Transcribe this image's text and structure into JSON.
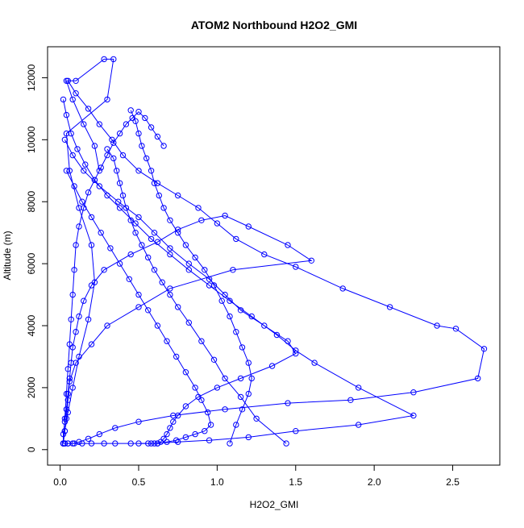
{
  "chart_data": {
    "type": "line",
    "title": "ATOM2 Northbound H2O2_GMI",
    "xlabel": "H2O2_GMI",
    "ylabel": "Altitude (m)",
    "xlim": [
      -0.08,
      2.8
    ],
    "ylim": [
      -500,
      13000
    ],
    "xticks": [
      0.0,
      0.5,
      1.0,
      1.5,
      2.0,
      2.5
    ],
    "xtick_labels": [
      "0.0",
      "0.5",
      "1.0",
      "1.5",
      "2.0",
      "2.5"
    ],
    "yticks": [
      0,
      2000,
      4000,
      6000,
      8000,
      10000,
      12000
    ],
    "ytick_labels": [
      "0",
      "2000",
      "4000",
      "6000",
      "8000",
      "10000",
      "12000"
    ],
    "grid": false,
    "legend": "none",
    "series": [
      {
        "color": "#0000ff",
        "marker": "open-circle",
        "x": [
          0.02,
          0.02,
          0.03,
          0.04,
          0.05,
          0.06,
          0.07,
          0.08,
          0.1,
          0.12,
          0.15,
          0.2,
          0.28,
          0.45,
          0.62,
          0.75,
          0.9,
          1.05,
          1.2,
          1.45,
          1.6,
          1.1,
          0.7,
          0.5,
          0.3,
          0.2,
          0.1,
          0.06,
          0.05,
          0.04,
          0.03,
          0.02,
          0.03,
          0.05,
          0.08,
          0.12,
          0.18,
          0.22,
          0.2,
          0.12,
          0.06,
          0.04,
          0.3,
          0.34,
          0.28,
          0.1,
          0.04,
          0.08,
          0.15,
          0.22,
          0.25
        ],
        "y": [
          200,
          500,
          900,
          1300,
          1800,
          2300,
          2800,
          3300,
          3800,
          4300,
          4800,
          5300,
          5800,
          6300,
          6700,
          7100,
          7400,
          7550,
          7200,
          6600,
          6100,
          5800,
          5200,
          4600,
          4000,
          3400,
          2800,
          2200,
          1600,
          1000,
          600,
          200,
          600,
          1200,
          2000,
          3000,
          4200,
          5400,
          6600,
          7800,
          9000,
          10200,
          11300,
          12600,
          12600,
          11900,
          11900,
          11300,
          10500,
          9800,
          9000
        ]
      },
      {
        "color": "#0000ff",
        "marker": "open-circle",
        "x": [
          0.05,
          0.1,
          0.18,
          0.25,
          0.33,
          0.4,
          0.5,
          0.62,
          0.75,
          0.88,
          1.0,
          1.12,
          1.3,
          1.5,
          1.8,
          2.1,
          2.4,
          2.52,
          2.7,
          2.66,
          2.25,
          1.85,
          1.45,
          1.05,
          0.72,
          0.5,
          0.35,
          0.25,
          0.18,
          0.12,
          0.08,
          0.05,
          0.03,
          0.02
        ],
        "y": [
          11900,
          11500,
          11000,
          10500,
          10000,
          9500,
          9000,
          8600,
          8200,
          7800,
          7300,
          6800,
          6300,
          5900,
          5200,
          4600,
          4000,
          3900,
          3250,
          2300,
          1850,
          1600,
          1500,
          1300,
          1100,
          900,
          700,
          500,
          350,
          250,
          200,
          200,
          200,
          200
        ]
      },
      {
        "color": "#0000ff",
        "marker": "open-circle",
        "x": [
          0.02,
          0.04,
          0.07,
          0.11,
          0.16,
          0.22,
          0.3,
          0.38,
          0.48,
          0.58,
          0.7,
          0.82,
          0.95,
          1.08,
          1.22,
          1.38,
          1.5,
          1.62,
          1.9,
          2.25,
          1.9,
          1.5,
          1.2,
          0.95,
          0.75,
          0.58,
          0.45,
          0.35,
          0.28,
          0.2,
          0.14,
          0.09,
          0.05,
          0.03
        ],
        "y": [
          11300,
          10800,
          10200,
          9700,
          9200,
          8700,
          8200,
          7800,
          7300,
          6800,
          6300,
          5800,
          5300,
          4800,
          4300,
          3700,
          3200,
          2800,
          2000,
          1100,
          800,
          600,
          400,
          300,
          250,
          200,
          200,
          200,
          200,
          200,
          200,
          200,
          200,
          200
        ]
      },
      {
        "color": "#0000ff",
        "marker": "open-circle",
        "x": [
          0.03,
          0.08,
          0.15,
          0.25,
          0.37,
          0.5,
          0.6,
          0.7,
          0.82,
          0.95,
          1.05,
          1.15,
          1.3,
          1.45,
          1.5,
          1.35,
          1.15,
          1.0,
          0.88,
          0.8,
          0.75,
          0.72,
          0.7,
          0.68,
          0.66,
          0.64,
          0.62,
          0.6
        ],
        "y": [
          10000,
          9500,
          9000,
          8500,
          8000,
          7500,
          7000,
          6500,
          6000,
          5500,
          5000,
          4500,
          4000,
          3500,
          3100,
          2700,
          2300,
          2000,
          1700,
          1400,
          1100,
          900,
          700,
          500,
          350,
          250,
          200,
          200
        ]
      },
      {
        "color": "#0000ff",
        "marker": "open-circle",
        "x": [
          0.45,
          0.48,
          0.5,
          0.52,
          0.55,
          0.58,
          0.6,
          0.63,
          0.66,
          0.7,
          0.75,
          0.8,
          0.86,
          0.92,
          0.98,
          1.03,
          1.08,
          1.12,
          1.16,
          1.2,
          1.22,
          1.2,
          1.16,
          1.12,
          1.08
        ],
        "y": [
          10950,
          10600,
          10200,
          9800,
          9400,
          9000,
          8600,
          8200,
          7800,
          7400,
          7000,
          6600,
          6200,
          5800,
          5300,
          4800,
          4300,
          3800,
          3300,
          2800,
          2300,
          1800,
          1300,
          800,
          200
        ]
      },
      {
        "color": "#0000ff",
        "marker": "open-circle",
        "x": [
          0.04,
          0.09,
          0.14,
          0.2,
          0.26,
          0.32,
          0.38,
          0.44,
          0.5,
          0.56,
          0.62,
          0.68,
          0.74,
          0.8,
          0.86,
          0.9,
          0.94,
          0.96,
          0.92,
          0.86,
          0.8,
          0.74,
          0.68,
          0.62,
          0.56,
          0.5
        ],
        "y": [
          9000,
          8500,
          8000,
          7500,
          7000,
          6500,
          6000,
          5500,
          5000,
          4500,
          4000,
          3500,
          3000,
          2500,
          2000,
          1600,
          1200,
          800,
          600,
          500,
          400,
          300,
          250,
          200,
          200,
          200
        ]
      },
      {
        "color": "#0000ff",
        "marker": "open-circle",
        "x": [
          0.3,
          0.34,
          0.36,
          0.38,
          0.4,
          0.42,
          0.45,
          0.48,
          0.52,
          0.56,
          0.6,
          0.65,
          0.7,
          0.75,
          0.82,
          0.9,
          0.98,
          1.05,
          1.15,
          1.25,
          1.44
        ],
        "y": [
          9700,
          9400,
          9000,
          8600,
          8200,
          7800,
          7400,
          7000,
          6600,
          6200,
          5800,
          5400,
          5000,
          4600,
          4100,
          3500,
          2900,
          2300,
          1700,
          1000,
          200
        ]
      },
      {
        "color": "#0000ff",
        "marker": "open-circle",
        "x": [
          0.02,
          0.03,
          0.04,
          0.05,
          0.06,
          0.07,
          0.08,
          0.09,
          0.1,
          0.12,
          0.15,
          0.18,
          0.22,
          0.26,
          0.3,
          0.34,
          0.38,
          0.42,
          0.46,
          0.5,
          0.54,
          0.58,
          0.62,
          0.66
        ],
        "y": [
          200,
          1000,
          1800,
          2600,
          3400,
          4200,
          5000,
          5800,
          6600,
          7200,
          7800,
          8300,
          8700,
          9100,
          9500,
          9900,
          10200,
          10500,
          10700,
          10900,
          10700,
          10400,
          10100,
          9800
        ]
      }
    ]
  }
}
